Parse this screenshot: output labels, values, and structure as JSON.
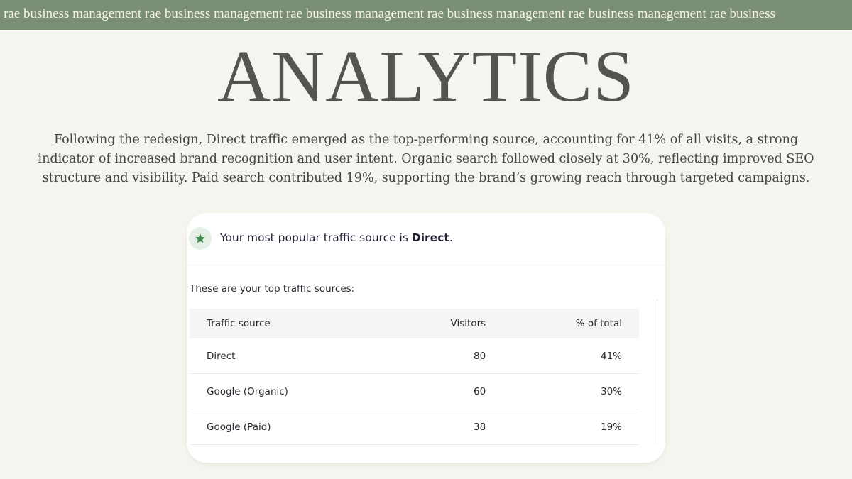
{
  "banner": "rae business management rae business management rae business management rae business management rae business management rae business",
  "title": "ANALYTICS",
  "paragraph": "Following the redesign, Direct traffic emerged as the top-performing source, accounting for 41% of all visits, a strong indicator of increased brand recognition and user intent. Organic search followed closely at 30%, reflecting improved SEO structure and visibility. Paid search contributed 19%, supporting the brand’s growing reach through targeted campaigns.",
  "card": {
    "headline_prefix": "Your most popular traffic source is ",
    "headline_bold": "Direct",
    "headline_suffix": ".",
    "subtitle": "These are your top traffic sources:",
    "table": {
      "headers": [
        "Traffic source",
        "Visitors",
        "% of total"
      ],
      "rows": [
        [
          "Direct",
          80,
          "41%"
        ],
        [
          "Google (Organic)",
          60,
          "30%"
        ],
        [
          "Google (Paid)",
          38,
          "19%"
        ]
      ]
    }
  }
}
